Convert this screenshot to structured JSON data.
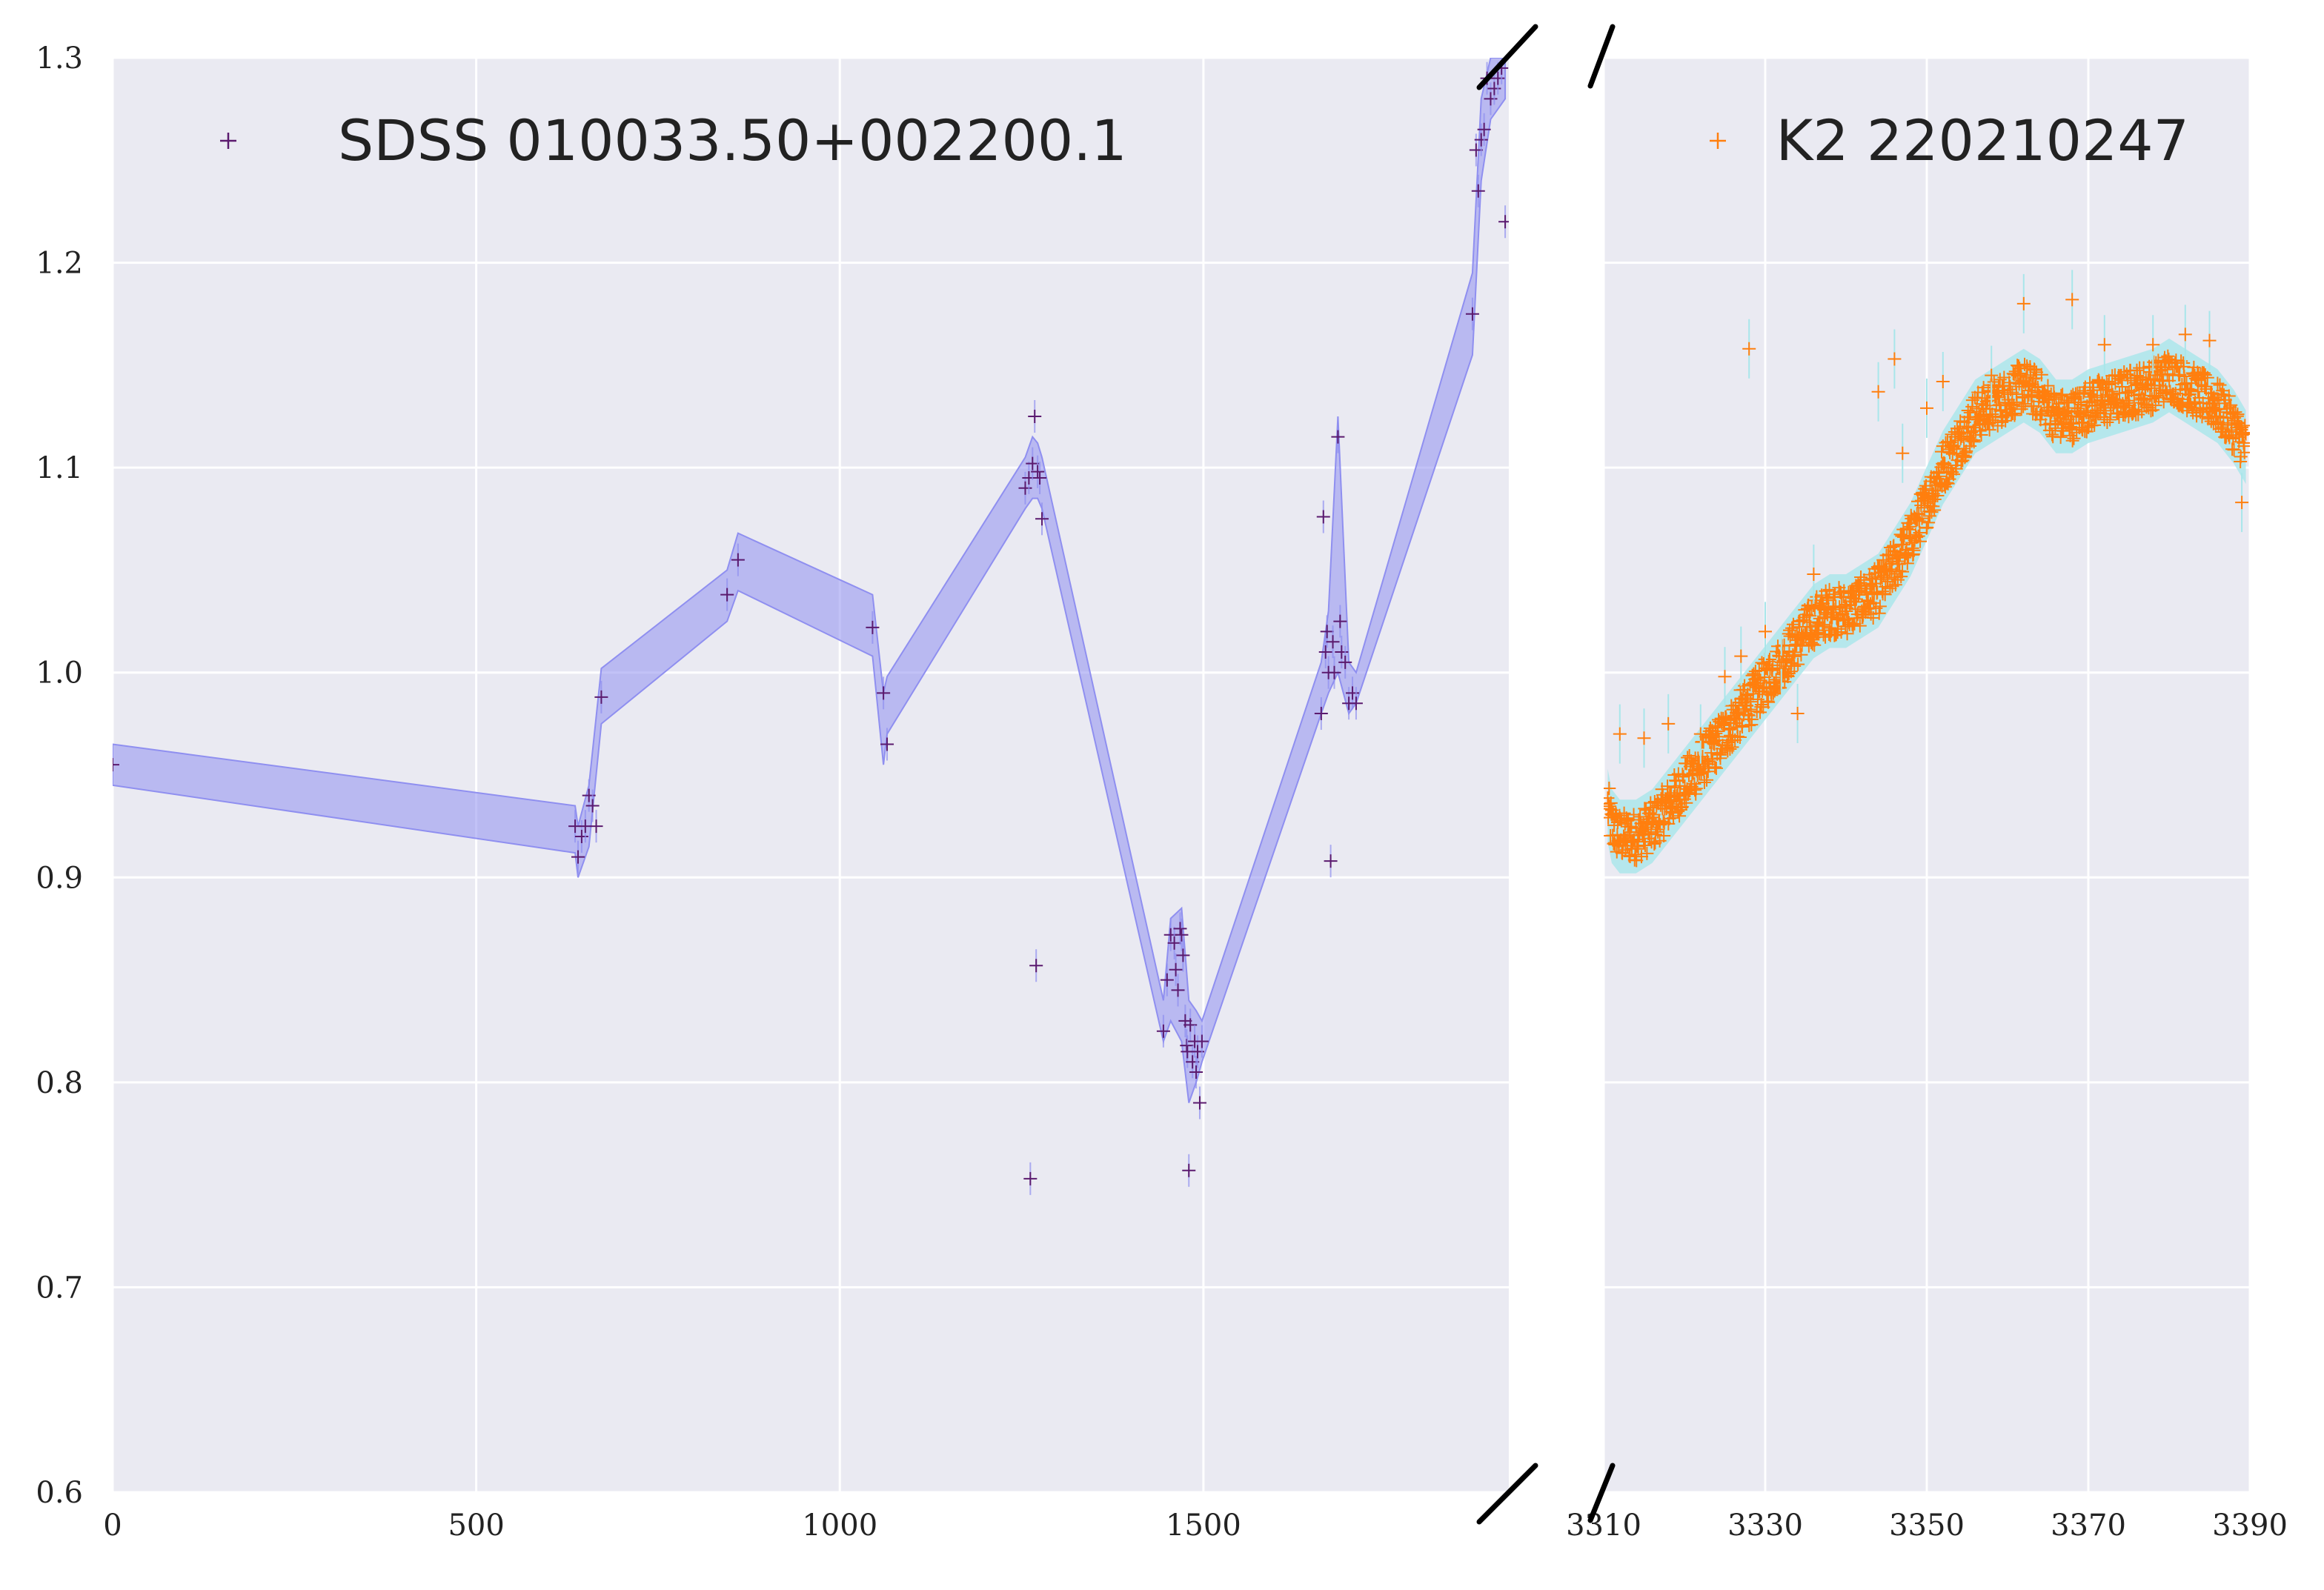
{
  "chart_data": [
    {
      "type": "scatter",
      "title": "",
      "xlabel": "",
      "ylabel": "",
      "xlim": [
        0,
        1920
      ],
      "ylim": [
        0.6,
        1.3
      ],
      "grid": true,
      "legend": "top-left",
      "x_ticks": [
        "0",
        "500",
        "1000",
        "1500"
      ],
      "x_tick_values": [
        0,
        500,
        1000,
        1500
      ],
      "y_ticks": [
        "0.6",
        "0.7",
        "0.8",
        "0.9",
        "1.0",
        "1.1",
        "1.2",
        "1.3"
      ],
      "y_tick_values": [
        0.6,
        0.7,
        0.8,
        0.9,
        1.0,
        1.1,
        1.2,
        1.3
      ],
      "series": [
        {
          "name": "SDSS 010033.50+002200.1",
          "color": "#5b1a6e",
          "band_color": "#8f8ff0",
          "x": [
            0,
            636,
            640,
            645,
            650,
            655,
            660,
            665,
            672,
            845,
            860,
            1045,
            1060,
            1065,
            1255,
            1260,
            1262,
            1265,
            1268,
            1270,
            1272,
            1275,
            1278,
            1445,
            1450,
            1455,
            1460,
            1462,
            1465,
            1468,
            1470,
            1472,
            1475,
            1477,
            1478,
            1480,
            1482,
            1485,
            1488,
            1490,
            1492,
            1495,
            1498,
            1662,
            1665,
            1668,
            1670,
            1672,
            1675,
            1678,
            1680,
            1685,
            1688,
            1690,
            1695,
            1700,
            1705,
            1710,
            1870,
            1875,
            1878,
            1882,
            1886,
            1890,
            1895,
            1900,
            1905,
            1910,
            1915
          ],
          "y": [
            0.955,
            0.925,
            0.91,
            0.92,
            0.925,
            0.94,
            0.935,
            0.925,
            0.988,
            1.038,
            1.055,
            1.022,
            0.99,
            0.965,
            1.09,
            1.095,
            0.753,
            1.102,
            1.125,
            0.857,
            1.098,
            1.095,
            1.075,
            0.825,
            0.85,
            0.872,
            0.868,
            0.855,
            0.845,
            0.875,
            0.872,
            0.862,
            0.83,
            0.818,
            0.815,
            0.757,
            0.828,
            0.81,
            0.82,
            0.805,
            0.815,
            0.79,
            0.82,
            0.98,
            1.076,
            1.01,
            1.02,
            1.0,
            0.908,
            1.015,
            1.0,
            1.115,
            1.025,
            1.01,
            1.005,
            0.985,
            0.99,
            0.985,
            1.175,
            1.255,
            1.235,
            1.26,
            1.265,
            1.29,
            1.28,
            1.285,
            1.29,
            1.295,
            1.22
          ],
          "band": {
            "x": [
              0,
              636,
              640,
              655,
              672,
              845,
              860,
              1045,
              1060,
              1065,
              1255,
              1265,
              1272,
              1278,
              1445,
              1455,
              1470,
              1480,
              1490,
              1498,
              1662,
              1672,
              1685,
              1700,
              1710,
              1870,
              1882,
              1895,
              1905,
              1915
            ],
            "lower": [
              0.945,
              0.912,
              0.9,
              0.915,
              0.975,
              1.025,
              1.04,
              1.008,
              0.955,
              0.97,
              1.08,
              1.085,
              1.085,
              1.08,
              0.82,
              0.83,
              0.82,
              0.79,
              0.8,
              0.81,
              0.98,
              0.99,
              1.0,
              0.98,
              0.985,
              1.155,
              1.24,
              1.27,
              1.275,
              1.28
            ],
            "upper": [
              0.965,
              0.935,
              0.925,
              0.945,
              1.002,
              1.05,
              1.068,
              1.038,
              0.99,
              0.998,
              1.105,
              1.115,
              1.112,
              1.105,
              0.84,
              0.88,
              0.885,
              0.84,
              0.835,
              0.83,
              1.005,
              1.03,
              1.125,
              1.005,
              1.0,
              1.195,
              1.28,
              1.3,
              1.3,
              1.3
            ]
          }
        }
      ]
    },
    {
      "type": "scatter",
      "title": "",
      "xlabel": "",
      "ylabel": "",
      "xlim": [
        3310,
        3390
      ],
      "ylim": [
        0.6,
        1.3
      ],
      "grid": true,
      "legend": "top-right",
      "x_ticks": [
        "3310",
        "3330",
        "3350",
        "3370",
        "3390"
      ],
      "x_tick_values": [
        3310,
        3330,
        3350,
        3370,
        3390
      ],
      "series": [
        {
          "name": "K2 220210247",
          "color": "#ff7f0e",
          "band_color": "#a8e6ea",
          "trend": {
            "x": [
              3310.5,
              3311,
              3312,
              3314,
              3316,
              3318,
              3320,
              3324,
              3328,
              3332,
              3336,
              3338,
              3340,
              3344,
              3348,
              3352,
              3356,
              3360,
              3362,
              3364,
              3366,
              3368,
              3370,
              3374,
              3378,
              3380,
              3382,
              3384,
              3386,
              3388,
              3389.5
            ],
            "y": [
              0.935,
              0.925,
              0.92,
              0.92,
              0.925,
              0.935,
              0.945,
              0.965,
              0.985,
              1.005,
              1.025,
              1.03,
              1.03,
              1.04,
              1.065,
              1.1,
              1.125,
              1.135,
              1.14,
              1.135,
              1.125,
              1.125,
              1.13,
              1.135,
              1.14,
              1.145,
              1.14,
              1.135,
              1.13,
              1.12,
              1.11
            ]
          },
          "outliers": {
            "x": [
              3312,
              3315,
              3318,
              3322,
              3325,
              3327,
              3328,
              3330,
              3332,
              3334,
              3336,
              3344,
              3346,
              3347,
              3350,
              3352,
              3358,
              3362,
              3368,
              3372,
              3378,
              3382,
              3385,
              3389
            ],
            "y": [
              0.97,
              0.968,
              0.975,
              0.97,
              0.998,
              1.008,
              1.158,
              1.02,
              1.005,
              0.98,
              1.048,
              1.137,
              1.153,
              1.107,
              1.129,
              1.142,
              1.145,
              1.18,
              1.182,
              1.16,
              1.16,
              1.165,
              1.162,
              1.083
            ]
          }
        }
      ]
    }
  ]
}
